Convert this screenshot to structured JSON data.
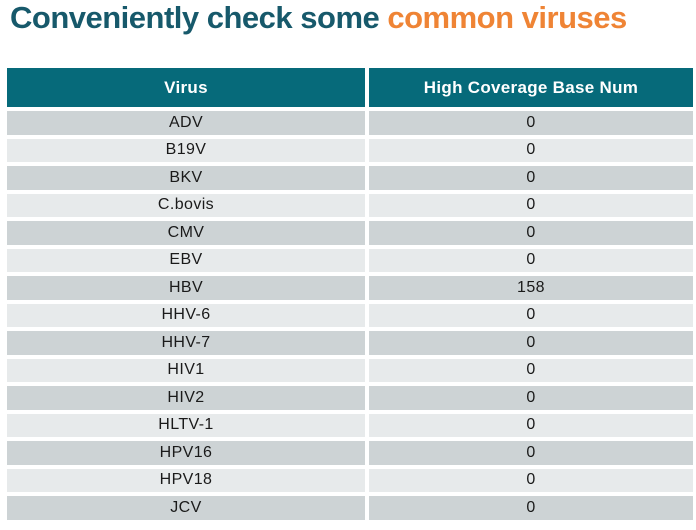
{
  "title": {
    "teal_part": "Conveniently check some ",
    "orange_part": "common viruses"
  },
  "colors": {
    "title_teal": "#17596b",
    "title_orange": "#ef8435",
    "header_bg": "#066a7a",
    "row_odd": "#cdd3d5",
    "row_even": "#e7eaeb"
  },
  "table": {
    "columns": [
      "Virus",
      "High Coverage Base Num"
    ],
    "rows": [
      [
        "ADV",
        "0"
      ],
      [
        "B19V",
        "0"
      ],
      [
        "BKV",
        "0"
      ],
      [
        "C.bovis",
        "0"
      ],
      [
        "CMV",
        "0"
      ],
      [
        "EBV",
        "0"
      ],
      [
        "HBV",
        "158"
      ],
      [
        "HHV-6",
        "0"
      ],
      [
        "HHV-7",
        "0"
      ],
      [
        "HIV1",
        "0"
      ],
      [
        "HIV2",
        "0"
      ],
      [
        "HLTV-1",
        "0"
      ],
      [
        "HPV16",
        "0"
      ],
      [
        "HPV18",
        "0"
      ],
      [
        "JCV",
        "0"
      ]
    ]
  }
}
